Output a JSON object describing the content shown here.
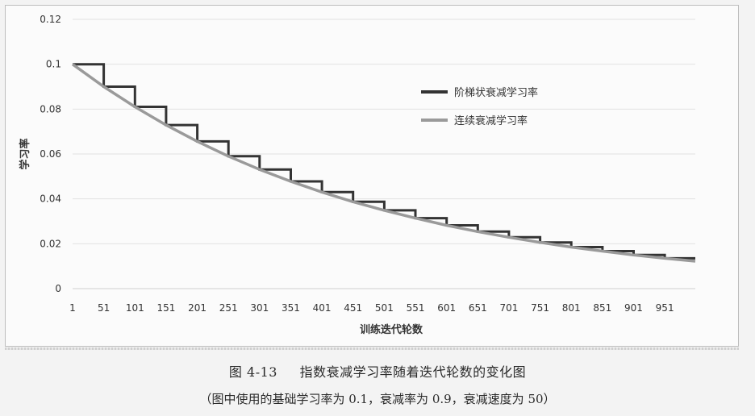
{
  "chart_data": {
    "type": "line",
    "xlabel": "训练迭代轮数",
    "ylabel": "学习率",
    "x_ticks": [
      "1",
      "51",
      "101",
      "151",
      "201",
      "251",
      "301",
      "351",
      "401",
      "451",
      "501",
      "551",
      "601",
      "651",
      "701",
      "751",
      "801",
      "851",
      "901",
      "951"
    ],
    "y_ticks": [
      "0",
      "0.02",
      "0.04",
      "0.06",
      "0.08",
      "0.1",
      "0.12"
    ],
    "xlim": [
      1,
      1000
    ],
    "ylim": [
      0,
      0.12
    ],
    "grid": "horizontal",
    "legend_position": "top-right",
    "base_learning_rate": 0.1,
    "decay_rate": 0.9,
    "decay_steps": 50,
    "series": [
      {
        "name": "阶梯状衰减学习率",
        "style": "staircase",
        "color": "#333333",
        "x": [
          1,
          51,
          101,
          151,
          201,
          251,
          301,
          351,
          401,
          451,
          501,
          551,
          601,
          651,
          701,
          751,
          801,
          851,
          901,
          951
        ],
        "y": [
          0.1,
          0.09,
          0.081,
          0.0729,
          0.0656,
          0.059,
          0.0531,
          0.0478,
          0.043,
          0.0387,
          0.0349,
          0.0314,
          0.0282,
          0.0254,
          0.0229,
          0.0206,
          0.0185,
          0.0167,
          0.015,
          0.0135
        ]
      },
      {
        "name": "连续衰减学习率",
        "style": "smooth",
        "color": "#9a9a9a",
        "x": [
          1,
          51,
          101,
          151,
          201,
          251,
          301,
          351,
          401,
          451,
          501,
          551,
          601,
          651,
          701,
          751,
          801,
          851,
          901,
          951,
          1000
        ],
        "y": [
          0.1,
          0.09,
          0.081,
          0.0729,
          0.0656,
          0.059,
          0.0531,
          0.0478,
          0.043,
          0.0387,
          0.0349,
          0.0314,
          0.0282,
          0.0254,
          0.0229,
          0.0206,
          0.0185,
          0.0167,
          0.015,
          0.0135,
          0.0122
        ]
      }
    ]
  },
  "caption": {
    "number": "图 4-13",
    "title": "指数衰减学习率随着迭代轮数的变化图",
    "note": "（图中使用的基础学习率为 0.1，衰减率为 0.9，衰减速度为 50）"
  }
}
